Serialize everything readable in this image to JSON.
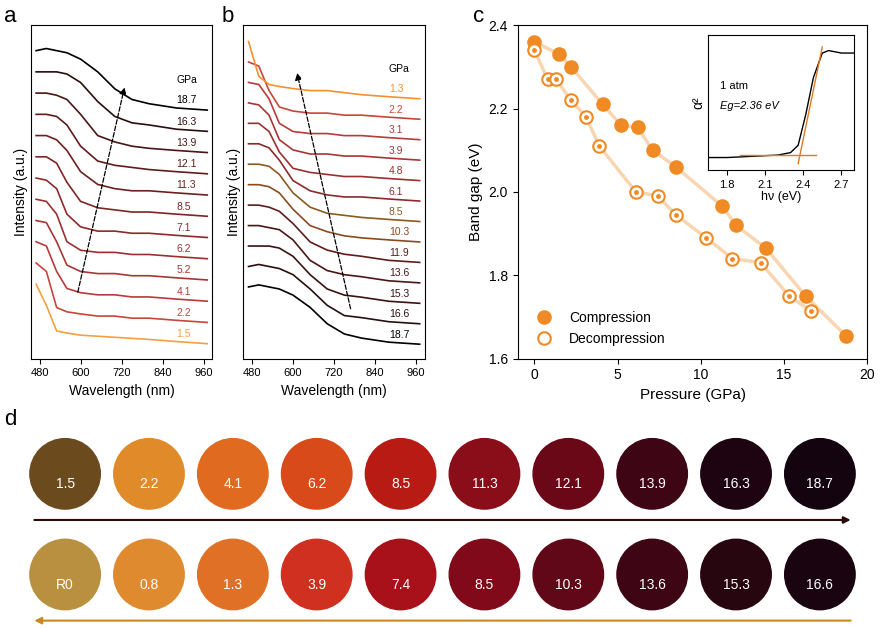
{
  "chart_data": [
    {
      "panel": "a",
      "type": "line",
      "xlabel": "Wavelength (nm)",
      "ylabel": "Intensity (a.u.)",
      "series_label_title": "GPa",
      "tick_labels": "x",
      "xlim": [
        455,
        985
      ],
      "xticks": [
        480,
        600,
        720,
        840,
        960
      ],
      "ylim": [
        -0.5,
        15.2
      ],
      "x": [
        470,
        500,
        530,
        560,
        600,
        650,
        700,
        750,
        800,
        880,
        970
      ],
      "series": [
        {
          "name": "1.5",
          "color": "#f5a040",
          "values": [
            3.0,
            2.0,
            0.8,
            0.7,
            0.6,
            0.55,
            0.5,
            0.45,
            0.4,
            0.3,
            0.2
          ]
        },
        {
          "name": "2.2",
          "color": "#c8453a",
          "values": [
            4.0,
            3.6,
            1.9,
            1.7,
            1.6,
            1.5,
            1.5,
            1.4,
            1.4,
            1.3,
            1.2
          ]
        },
        {
          "name": "4.1",
          "color": "#b83a3a",
          "values": [
            5.0,
            4.8,
            3.6,
            2.8,
            2.6,
            2.5,
            2.5,
            2.4,
            2.4,
            2.3,
            2.2
          ]
        },
        {
          "name": "5.2",
          "color": "#a83535",
          "values": [
            6.0,
            5.9,
            5.0,
            3.9,
            3.6,
            3.5,
            3.5,
            3.4,
            3.4,
            3.3,
            3.2
          ]
        },
        {
          "name": "6.2",
          "color": "#9a3030",
          "values": [
            7.0,
            6.9,
            6.3,
            5.0,
            4.6,
            4.5,
            4.5,
            4.4,
            4.4,
            4.3,
            4.2
          ]
        },
        {
          "name": "7.1",
          "color": "#8c2a2a",
          "values": [
            8.0,
            7.9,
            7.5,
            6.3,
            5.7,
            5.5,
            5.5,
            5.4,
            5.4,
            5.3,
            5.2
          ]
        },
        {
          "name": "8.5",
          "color": "#7e2525",
          "values": [
            9.0,
            9.0,
            8.7,
            7.8,
            6.9,
            6.6,
            6.5,
            6.4,
            6.4,
            6.3,
            6.2
          ]
        },
        {
          "name": "11.3",
          "color": "#6e2020",
          "values": [
            10.0,
            10.0,
            9.8,
            9.3,
            8.3,
            7.7,
            7.5,
            7.4,
            7.4,
            7.3,
            7.2
          ]
        },
        {
          "name": "12.1",
          "color": "#5e1c1c",
          "values": [
            11.0,
            11.0,
            10.9,
            10.5,
            9.5,
            8.8,
            8.6,
            8.5,
            8.4,
            8.3,
            8.2
          ]
        },
        {
          "name": "13.9",
          "color": "#4a1616",
          "values": [
            12.0,
            12.0,
            11.9,
            11.7,
            11.0,
            10.0,
            9.7,
            9.5,
            9.4,
            9.3,
            9.2
          ]
        },
        {
          "name": "16.3",
          "color": "#2a0e0e",
          "values": [
            13.0,
            13.0,
            13.0,
            12.9,
            12.5,
            11.6,
            10.9,
            10.6,
            10.5,
            10.3,
            10.2
          ]
        },
        {
          "name": "18.7",
          "color": "#000000",
          "values": [
            14.0,
            14.1,
            14.0,
            13.9,
            13.6,
            13.0,
            12.2,
            11.7,
            11.5,
            11.3,
            11.2
          ]
        }
      ]
    },
    {
      "panel": "b",
      "type": "line",
      "xlabel": "Wavelength (nm)",
      "ylabel": "Intensity (a.u.)",
      "series_label_title": "GPa",
      "tick_labels": "x",
      "xlim": [
        455,
        985
      ],
      "xticks": [
        480,
        600,
        720,
        840,
        960
      ],
      "ylim": [
        -0.5,
        15.8
      ],
      "x": [
        470,
        500,
        530,
        560,
        600,
        650,
        700,
        750,
        800,
        880,
        970
      ],
      "series": [
        {
          "name": "18.7",
          "color": "#000000",
          "values": [
            3.0,
            3.1,
            3.0,
            2.9,
            2.6,
            2.0,
            1.2,
            0.7,
            0.5,
            0.3,
            0.2
          ]
        },
        {
          "name": "16.6",
          "color": "#2a0e0e",
          "values": [
            4.0,
            4.1,
            4.0,
            3.9,
            3.6,
            2.9,
            2.1,
            1.6,
            1.5,
            1.3,
            1.2
          ]
        },
        {
          "name": "15.3",
          "color": "#3a1212",
          "values": [
            5.0,
            5.0,
            5.0,
            4.9,
            4.5,
            3.6,
            2.9,
            2.6,
            2.5,
            2.3,
            2.2
          ]
        },
        {
          "name": "13.6",
          "color": "#4a1616",
          "values": [
            6.0,
            6.0,
            5.9,
            5.8,
            5.3,
            4.3,
            3.8,
            3.6,
            3.5,
            3.3,
            3.2
          ]
        },
        {
          "name": "11.9",
          "color": "#5e1c1c",
          "values": [
            7.0,
            7.0,
            6.9,
            6.7,
            6.1,
            5.2,
            4.8,
            4.6,
            4.5,
            4.3,
            4.2
          ]
        },
        {
          "name": "10.3",
          "color": "#8a4a20",
          "values": [
            8.0,
            8.0,
            7.9,
            7.6,
            6.8,
            6.0,
            5.7,
            5.5,
            5.4,
            5.3,
            5.2
          ]
        },
        {
          "name": "8.5",
          "color": "#8a5a20",
          "values": [
            9.0,
            9.0,
            8.9,
            8.5,
            7.6,
            6.9,
            6.6,
            6.5,
            6.4,
            6.3,
            6.2
          ]
        },
        {
          "name": "6.1",
          "color": "#8c2a2a",
          "values": [
            10.0,
            10.0,
            9.8,
            9.2,
            8.2,
            7.7,
            7.5,
            7.4,
            7.4,
            7.3,
            7.2
          ]
        },
        {
          "name": "4.8",
          "color": "#9a3030",
          "values": [
            11.0,
            11.0,
            10.6,
            9.6,
            8.8,
            8.6,
            8.5,
            8.4,
            8.4,
            8.3,
            8.2
          ]
        },
        {
          "name": "3.9",
          "color": "#a83535",
          "values": [
            12.0,
            11.9,
            11.4,
            10.2,
            9.7,
            9.5,
            9.5,
            9.4,
            9.4,
            9.3,
            9.2
          ]
        },
        {
          "name": "3.1",
          "color": "#b83a3a",
          "values": [
            13.0,
            12.9,
            12.2,
            11.0,
            10.6,
            10.5,
            10.5,
            10.4,
            10.4,
            10.3,
            10.2
          ]
        },
        {
          "name": "2.2",
          "color": "#c8453a",
          "values": [
            14.0,
            13.8,
            12.6,
            11.8,
            11.6,
            11.5,
            11.5,
            11.4,
            11.4,
            11.3,
            11.2
          ]
        },
        {
          "name": "1.3",
          "color": "#f59030",
          "values": [
            15.0,
            13.3,
            12.9,
            12.8,
            12.7,
            12.6,
            12.6,
            12.5,
            12.4,
            12.3,
            12.2
          ]
        }
      ]
    },
    {
      "panel": "c",
      "type": "scatter",
      "xlabel": "Pressure (GPa)",
      "ylabel": "Band gap (eV)",
      "xlim": [
        -1,
        20
      ],
      "xticks": [
        0,
        5,
        10,
        15,
        20
      ],
      "ylim": [
        1.6,
        2.4
      ],
      "yticks": [
        {
          "value": 1.6,
          "label": "1.6"
        },
        {
          "value": 1.8,
          "label": "1.8"
        },
        {
          "value": 2.0,
          "label": "2.0"
        },
        {
          "value": 2.2,
          "label": "2.2"
        },
        {
          "value": 2.4,
          "label": "2.4"
        }
      ],
      "legend": "lower left",
      "series": [
        {
          "name": "Compression",
          "color": "#f08a24",
          "marker": "filled_circle",
          "line_style": "solid",
          "x": [
            0,
            1.5,
            2.2,
            4.1,
            5.2,
            6.2,
            7.1,
            8.5,
            11.3,
            12.1,
            13.9,
            16.3,
            18.7
          ],
          "values": [
            2.36,
            2.33,
            2.3,
            2.21,
            2.16,
            2.155,
            2.1,
            2.06,
            1.965,
            1.92,
            1.865,
            1.75,
            1.655
          ]
        },
        {
          "name": "Decompression",
          "color": "#f08a24",
          "marker": "open_circle",
          "line_style": "solid",
          "x": [
            0,
            0.8,
            1.3,
            2.2,
            3.1,
            3.9,
            6.1,
            7.4,
            8.5,
            10.3,
            11.9,
            13.6,
            15.3,
            16.6
          ],
          "values": [
            2.34,
            2.27,
            2.27,
            2.22,
            2.18,
            2.11,
            2.0,
            1.99,
            1.945,
            1.89,
            1.84,
            1.83,
            1.75,
            1.715
          ]
        }
      ]
    },
    {
      "type": "line",
      "xlabel": "hν (eV)",
      "ylabel": "α²",
      "tick_labels": "x",
      "annotations": [
        "1 atm",
        "Eg=2.36 eV"
      ],
      "xlim": [
        1.65,
        2.8
      ],
      "xticks": [
        1.8,
        2.1,
        2.4,
        2.7
      ],
      "ylim": [
        0,
        1.1
      ],
      "series": [
        {
          "color": "#000000",
          "x": [
            1.65,
            1.8,
            2.0,
            2.2,
            2.3,
            2.36,
            2.42,
            2.48,
            2.55,
            2.6,
            2.7,
            2.8
          ],
          "values": [
            0.1,
            0.1,
            0.11,
            0.12,
            0.14,
            0.2,
            0.45,
            0.75,
            0.95,
            0.97,
            0.95,
            0.95
          ]
        },
        {
          "color": "#e07a20",
          "x": [
            1.9,
            2.5
          ],
          "values": [
            0.12,
            0.12
          ]
        },
        {
          "color": "#e07a20",
          "x": [
            2.36,
            2.55
          ],
          "values": [
            0.05,
            1.0
          ]
        }
      ]
    }
  ],
  "photos": {
    "panel": "d",
    "rows": [
      {
        "direction": "right",
        "labels": [
          "1.5",
          "2.2",
          "4.1",
          "6.2",
          "8.5",
          "11.3",
          "12.1",
          "13.9",
          "16.3",
          "18.7"
        ],
        "colors": [
          "#6b4a1e",
          "#e08a2a",
          "#e06a20",
          "#d84a1a",
          "#b81a14",
          "#8a0e1a",
          "#6a0818",
          "#3e0614",
          "#1e0410",
          "#140410"
        ]
      },
      {
        "direction": "left",
        "labels": [
          "R0",
          "0.8",
          "1.3",
          "3.9",
          "7.4",
          "8.5",
          "10.3",
          "13.6",
          "15.3",
          "16.6"
        ],
        "colors": [
          "#b89040",
          "#e08a30",
          "#e07025",
          "#d03020",
          "#a8101a",
          "#800a1a",
          "#600818",
          "#3e0614",
          "#280610",
          "#1a0410"
        ]
      }
    ]
  }
}
